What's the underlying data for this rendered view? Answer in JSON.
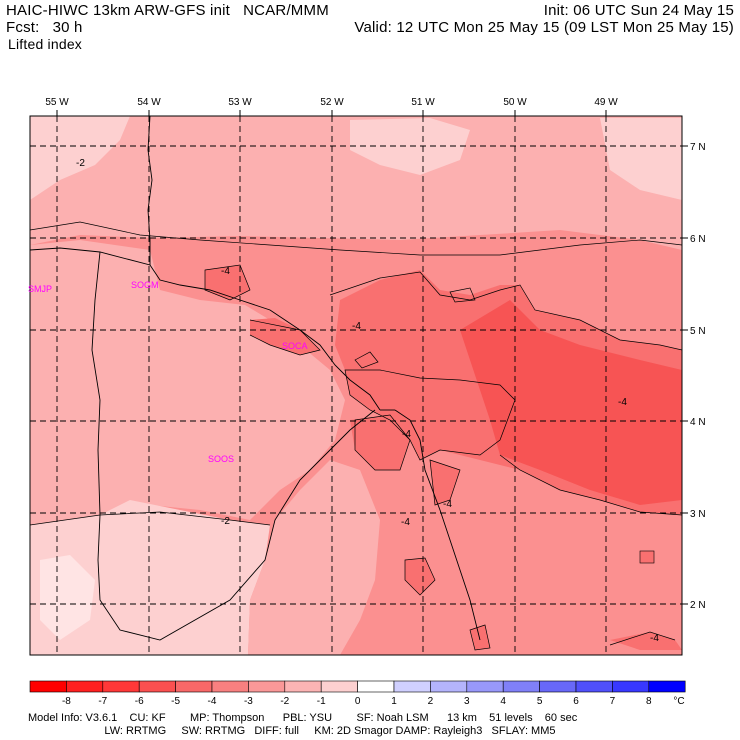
{
  "header": {
    "title_line1": "HAIC-HIWC 13km ARW-GFS init   NCAR/MMM",
    "title_line2": "Fcst:   30 h",
    "field_name": "Lifted index",
    "init_text": "Init: 06 UTC Sun 24 May 15",
    "valid_text": "Valid: 12 UTC Mon 25 May 15 (09 LST Mon 25 May 15)"
  },
  "map": {
    "lon_labels": [
      "55 W",
      "54 W",
      "53 W",
      "52 W",
      "51 W",
      "50 W",
      "49 W"
    ],
    "lat_labels": [
      "7 N",
      "6 N",
      "5 N",
      "4 N",
      "3 N",
      "2 N"
    ],
    "stations": [
      "SMJP",
      "SOGM",
      "SOCA",
      "SOOS"
    ],
    "contour_labels": [
      "-2",
      "-4",
      "-4",
      "-4",
      "-4",
      "-4",
      "-4",
      "-2",
      "-4"
    ],
    "colors": {
      "shade_m1_0": "#fdd0d0",
      "shade_m2_m1": "#fcb0b0",
      "shade_m3_m2": "#fb9090",
      "shade_m4_m3": "#f97070",
      "shade_m5_m4": "#f75454",
      "station_label": "#ff00ff"
    }
  },
  "colorbar": {
    "labels": [
      "-8",
      "-7",
      "-6",
      "-5",
      "-4",
      "-3",
      "-2",
      "-1",
      "0",
      "1",
      "2",
      "3",
      "4",
      "5",
      "6",
      "7",
      "8"
    ],
    "unit": "°C",
    "colors": [
      "#ff0000",
      "#ff2020",
      "#ff3838",
      "#fb5050",
      "#f86868",
      "#f88080",
      "#fa9898",
      "#fcb4b4",
      "#fdd0d0",
      "#ffffff",
      "#d0d0ff",
      "#b4b4fc",
      "#9898fa",
      "#8080f8",
      "#6868f8",
      "#5050fb",
      "#3838ff",
      "#0000ff"
    ]
  },
  "footer": {
    "line1": "Model Info: V3.6.1    CU: KF        MP: Thompson      PBL: YSU        SF: Noah LSM      13 km    51 levels    60 sec",
    "line2": "                         LW: RRTMG     SW: RRTMG   DIFF: full     KM: 2D Smagor DAMP: Rayleigh3   SFLAY: MM5"
  }
}
